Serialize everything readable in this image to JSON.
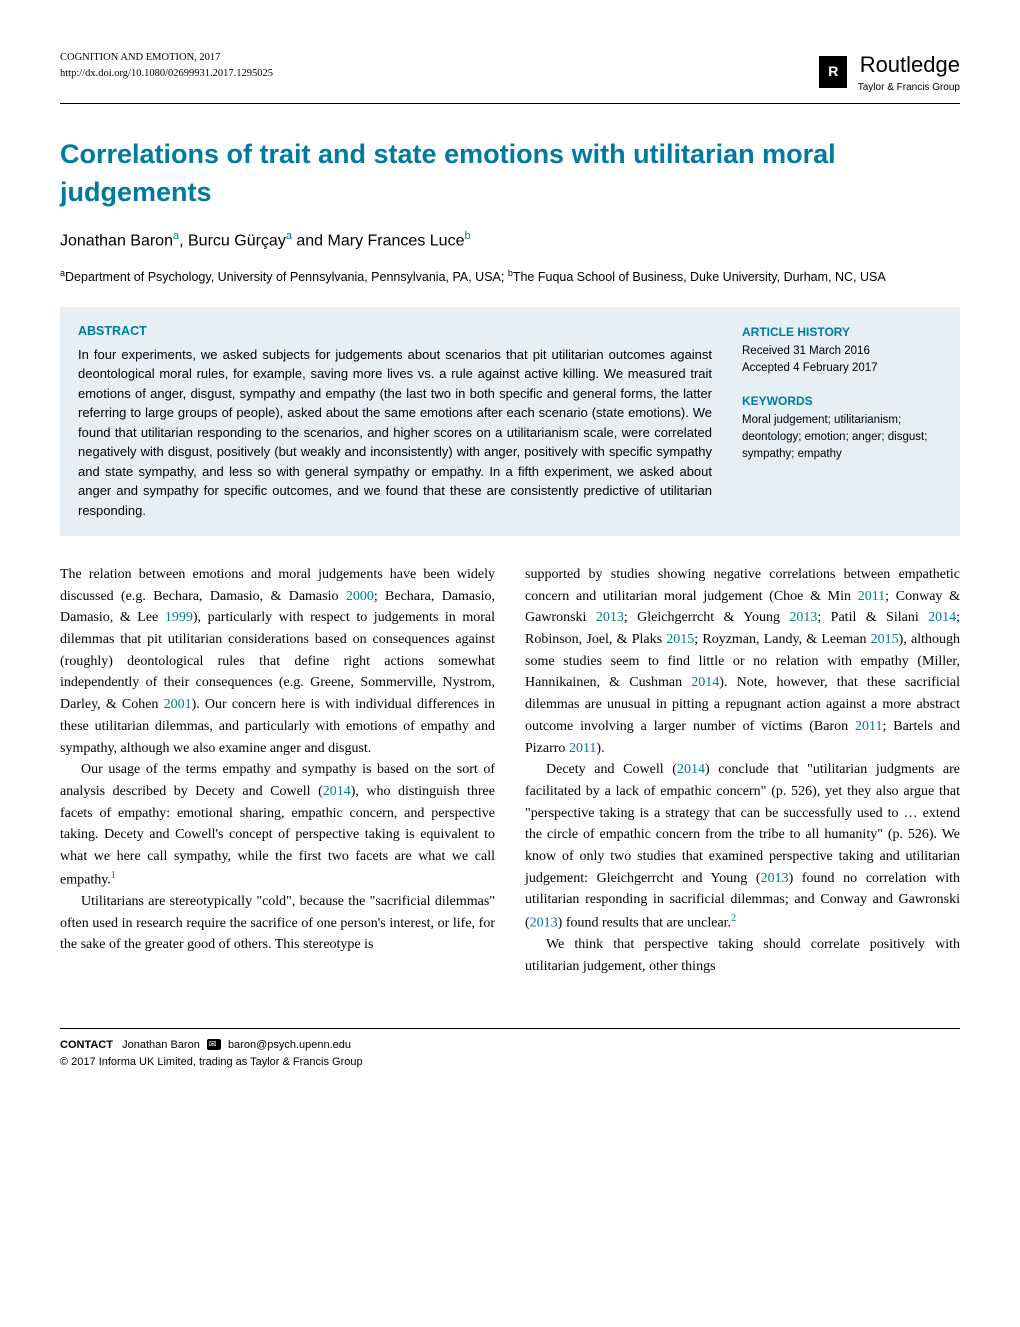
{
  "header": {
    "journal": "COGNITION AND EMOTION, 2017",
    "doi": "http://dx.doi.org/10.1080/02699931.2017.1295025",
    "publisher_name": "Routledge",
    "publisher_tagline": "Taylor & Francis Group"
  },
  "title": "Correlations of trait and state emotions with utilitarian moral judgements",
  "authors": {
    "a1": "Jonathan Baron",
    "a1_sup": "a",
    "a2": "Burcu Gürçay",
    "a2_sup": "a",
    "a3": "Mary Frances Luce",
    "a3_sup": "b"
  },
  "affiliations": {
    "a": "Department of Psychology, University of Pennsylvania, Pennsylvania, PA, USA; ",
    "b": "The Fuqua School of Business, Duke University, Durham, NC, USA"
  },
  "abstract": {
    "label": "ABSTRACT",
    "text": "In four experiments, we asked subjects for judgements about scenarios that pit utilitarian outcomes against deontological moral rules, for example, saving more lives vs. a rule against active killing. We measured trait emotions of anger, disgust, sympathy and empathy (the last two in both specific and general forms, the latter referring to large groups of people), asked about the same emotions after each scenario (state emotions). We found that utilitarian responding to the scenarios, and higher scores on a utilitarianism scale, were correlated negatively with disgust, positively (but weakly and inconsistently) with anger, positively with specific sympathy and state sympathy, and less so with general sympathy or empathy. In a fifth experiment, we asked about anger and sympathy for specific outcomes, and we found that these are consistently predictive of utilitarian responding."
  },
  "history": {
    "heading": "ARTICLE HISTORY",
    "received": "Received 31 March 2016",
    "accepted": "Accepted 4 February 2017"
  },
  "keywords": {
    "heading": "KEYWORDS",
    "text": "Moral judgement; utilitarianism; deontology; emotion; anger; disgust; sympathy; empathy"
  },
  "body": {
    "col1_p1_a": "The relation between emotions and moral judgements have been widely discussed (e.g. Bechara, Damasio, & Damasio ",
    "col1_p1_y1": "2000",
    "col1_p1_b": "; Bechara, Damasio, Damasio, & Lee ",
    "col1_p1_y2": "1999",
    "col1_p1_c": "), particularly with respect to judgements in moral dilemmas that pit utilitarian considerations based on consequences against (roughly) deontological rules that define right actions somewhat independently of their consequences (e.g. Greene, Sommerville, Nystrom, Darley, & Cohen ",
    "col1_p1_y3": "2001",
    "col1_p1_d": "). Our concern here is with individual differences in these utilitarian dilemmas, and particularly with emotions of empathy and sympathy, although we also examine anger and disgust.",
    "col1_p2_a": "Our usage of the terms empathy and sympathy is based on the sort of analysis described by Decety and Cowell (",
    "col1_p2_y1": "2014",
    "col1_p2_b": "), who distinguish three facets of empathy: emotional sharing, empathic concern, and perspective taking. Decety and Cowell's concept of perspective taking is equivalent to what we here call sympathy, while the first two facets are what we call empathy.",
    "col1_p2_fn": "1",
    "col1_p3": "Utilitarians are stereotypically \"cold\", because the \"sacrificial dilemmas\" often used in research require the sacrifice of one person's interest, or life, for the sake of the greater good of others. This stereotype is",
    "col2_p1_a": "supported by studies showing negative correlations between empathetic concern and utilitarian moral judgement (Choe & Min ",
    "col2_p1_y1": "2011",
    "col2_p1_b": "; Conway & Gawronski ",
    "col2_p1_y2": "2013",
    "col2_p1_c": "; Gleichgerrcht & Young ",
    "col2_p1_y3": "2013",
    "col2_p1_d": "; Patil & Silani ",
    "col2_p1_y4": "2014",
    "col2_p1_e": "; Robinson, Joel, & Plaks ",
    "col2_p1_y5": "2015",
    "col2_p1_f": "; Royzman, Landy, & Leeman ",
    "col2_p1_y6": "2015",
    "col2_p1_g": "), although some studies seem to find little or no relation with empathy (Miller, Hannikainen, & Cushman ",
    "col2_p1_y7": "2014",
    "col2_p1_h": "). Note, however, that these sacrificial dilemmas are unusual in pitting a repugnant action against a more abstract outcome involving a larger number of victims (Baron ",
    "col2_p1_y8": "2011",
    "col2_p1_i": "; Bartels and Pizarro ",
    "col2_p1_y9": "2011",
    "col2_p1_j": ").",
    "col2_p2_a": "Decety and Cowell (",
    "col2_p2_y1": "2014",
    "col2_p2_b": ") conclude that \"utilitarian judgments are facilitated by a lack of empathic concern\" (p. 526), yet they also argue that \"perspective taking is a strategy that can be successfully used to … extend the circle of empathic concern from the tribe to all humanity\" (p. 526). We know of only two studies that examined perspective taking and utilitarian judgement: Gleichgerrcht and Young (",
    "col2_p2_y2": "2013",
    "col2_p2_c": ") found no correlation with utilitarian responding in sacrificial dilemmas; and Conway and Gawronski (",
    "col2_p2_y3": "2013",
    "col2_p2_d": ") found results that are unclear.",
    "col2_p2_fn": "2",
    "col2_p3": "We think that perspective taking should correlate positively with utilitarian judgement, other things"
  },
  "footer": {
    "contact_label": "CONTACT",
    "contact_name": "Jonathan Baron",
    "contact_email": "baron@psych.upenn.edu",
    "copyright": "© 2017 Informa UK Limited, trading as Taylor & Francis Group"
  },
  "colors": {
    "accent": "#007a9e",
    "abstract_bg": "#e5eff4",
    "text": "#000000",
    "background": "#ffffff"
  },
  "typography": {
    "title_fontsize": 27,
    "body_fontsize": 14,
    "abstract_fontsize": 13,
    "header_fontsize": 10.5
  }
}
